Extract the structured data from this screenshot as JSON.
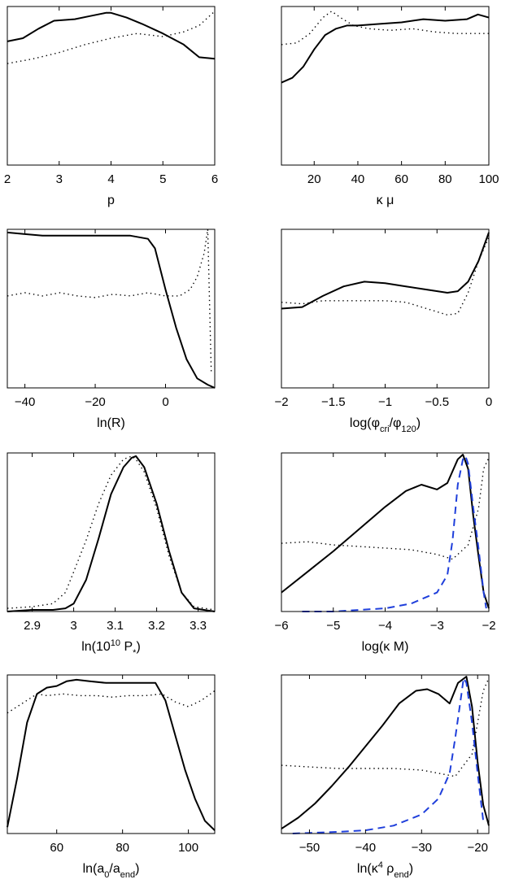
{
  "figure": {
    "description_free": true
  },
  "colors": {
    "solid": "#000000",
    "dotted": "#000000",
    "dashed": "#1f3fdb"
  },
  "chart_data": [
    {
      "type": "line",
      "xlabel": "p",
      "xlim": [
        2,
        6
      ],
      "ylim": [
        0,
        1
      ],
      "xticks": [
        2,
        3,
        4,
        5,
        6
      ],
      "xtick_labels": [
        "2",
        "3",
        "4",
        "5",
        "6"
      ],
      "series": [
        {
          "name": "solid",
          "style": "solid",
          "x": [
            2.0,
            2.3,
            2.6,
            2.9,
            3.3,
            3.6,
            3.9,
            4.0,
            4.3,
            4.6,
            5.0,
            5.4,
            5.7,
            6.0
          ],
          "y": [
            0.78,
            0.8,
            0.86,
            0.91,
            0.92,
            0.94,
            0.96,
            0.96,
            0.93,
            0.89,
            0.83,
            0.76,
            0.68,
            0.67
          ]
        },
        {
          "name": "dotted",
          "style": "dotted",
          "x": [
            2.0,
            2.5,
            3.0,
            3.5,
            4.0,
            4.5,
            5.0,
            5.4,
            5.7,
            6.0
          ],
          "y": [
            0.64,
            0.67,
            0.71,
            0.76,
            0.8,
            0.83,
            0.81,
            0.84,
            0.88,
            0.97
          ]
        }
      ]
    },
    {
      "type": "line",
      "xlabel": "κ μ",
      "xlim": [
        5,
        100
      ],
      "ylim": [
        0,
        1
      ],
      "xticks": [
        20,
        40,
        60,
        80,
        100
      ],
      "xtick_labels": [
        "20",
        "40",
        "60",
        "80",
        "100"
      ],
      "series": [
        {
          "name": "solid",
          "style": "solid",
          "x": [
            5,
            10,
            15,
            20,
            25,
            30,
            35,
            40,
            50,
            60,
            70,
            80,
            90,
            95,
            100
          ],
          "y": [
            0.52,
            0.55,
            0.62,
            0.73,
            0.82,
            0.86,
            0.88,
            0.88,
            0.89,
            0.9,
            0.92,
            0.91,
            0.92,
            0.95,
            0.93
          ]
        },
        {
          "name": "dotted",
          "style": "dotted",
          "x": [
            5,
            12,
            18,
            24,
            28,
            32,
            38,
            45,
            55,
            65,
            75,
            85,
            100
          ],
          "y": [
            0.76,
            0.77,
            0.83,
            0.93,
            0.97,
            0.93,
            0.88,
            0.86,
            0.85,
            0.86,
            0.84,
            0.83,
            0.83
          ]
        }
      ]
    },
    {
      "type": "line",
      "xlabel": "ln(R)",
      "xlim": [
        -45,
        14
      ],
      "ylim": [
        0,
        1
      ],
      "xticks": [
        -40,
        -20,
        0
      ],
      "xtick_labels": [
        "−40",
        "−20",
        "0"
      ],
      "series": [
        {
          "name": "solid",
          "style": "solid",
          "x": [
            -45,
            -40,
            -35,
            -30,
            -25,
            -20,
            -15,
            -10,
            -5,
            -3,
            0,
            3,
            6,
            9,
            12,
            14
          ],
          "y": [
            0.98,
            0.97,
            0.96,
            0.96,
            0.96,
            0.96,
            0.96,
            0.96,
            0.94,
            0.88,
            0.62,
            0.38,
            0.18,
            0.06,
            0.02,
            0.0
          ]
        },
        {
          "name": "dotted",
          "style": "dotted",
          "x": [
            -45,
            -40,
            -35,
            -30,
            -25,
            -20,
            -15,
            -10,
            -5,
            0,
            4,
            7,
            9,
            11,
            12,
            13
          ],
          "y": [
            0.58,
            0.6,
            0.58,
            0.6,
            0.58,
            0.57,
            0.59,
            0.58,
            0.6,
            0.58,
            0.58,
            0.62,
            0.7,
            0.85,
            1.0,
            0.1
          ]
        }
      ]
    },
    {
      "type": "line",
      "xlabel": "log(φcri/φ120)",
      "xlim": [
        -2,
        0
      ],
      "ylim": [
        0,
        1
      ],
      "xticks": [
        -2,
        -1.5,
        -1,
        -0.5,
        0
      ],
      "xtick_labels": [
        "−2",
        "−1.5",
        "−1",
        "−0.5",
        "0"
      ],
      "series": [
        {
          "name": "solid",
          "style": "solid",
          "x": [
            -2.0,
            -1.8,
            -1.6,
            -1.4,
            -1.2,
            -1.0,
            -0.8,
            -0.6,
            -0.4,
            -0.3,
            -0.2,
            -0.1,
            0.0
          ],
          "y": [
            0.5,
            0.51,
            0.58,
            0.64,
            0.67,
            0.66,
            0.64,
            0.62,
            0.6,
            0.61,
            0.67,
            0.8,
            0.98
          ]
        },
        {
          "name": "dotted",
          "style": "dotted",
          "x": [
            -2.0,
            -1.8,
            -1.6,
            -1.4,
            -1.2,
            -1.0,
            -0.8,
            -0.6,
            -0.4,
            -0.3,
            -0.2,
            -0.1,
            0.0
          ],
          "y": [
            0.54,
            0.53,
            0.55,
            0.55,
            0.55,
            0.55,
            0.54,
            0.5,
            0.46,
            0.47,
            0.6,
            0.8,
            0.95
          ]
        }
      ]
    },
    {
      "type": "line",
      "xlabel": "ln(10¹⁰ P*)",
      "xlim": [
        2.84,
        3.34
      ],
      "ylim": [
        0,
        1
      ],
      "xticks": [
        2.9,
        3.0,
        3.1,
        3.2,
        3.3
      ],
      "xtick_labels": [
        "2.9",
        "3",
        "3.1",
        "3.2",
        "3.3"
      ],
      "series": [
        {
          "name": "solid",
          "style": "solid",
          "x": [
            2.84,
            2.9,
            2.95,
            2.98,
            3.0,
            3.03,
            3.06,
            3.09,
            3.12,
            3.14,
            3.15,
            3.17,
            3.2,
            3.23,
            3.26,
            3.29,
            3.34
          ],
          "y": [
            0.0,
            0.01,
            0.01,
            0.02,
            0.05,
            0.2,
            0.46,
            0.74,
            0.91,
            0.97,
            0.98,
            0.91,
            0.68,
            0.38,
            0.12,
            0.02,
            0.0
          ]
        },
        {
          "name": "dotted",
          "style": "dotted",
          "x": [
            2.84,
            2.9,
            2.95,
            2.98,
            3.0,
            3.03,
            3.06,
            3.09,
            3.12,
            3.14,
            3.15,
            3.17,
            3.2,
            3.23,
            3.26,
            3.29,
            3.34
          ],
          "y": [
            0.02,
            0.03,
            0.05,
            0.12,
            0.25,
            0.45,
            0.68,
            0.86,
            0.96,
            0.98,
            0.96,
            0.88,
            0.65,
            0.35,
            0.12,
            0.03,
            0.01
          ]
        }
      ]
    },
    {
      "type": "line",
      "xlabel": "log(κ M)",
      "xlim": [
        -6,
        -2
      ],
      "ylim": [
        0,
        1
      ],
      "xticks": [
        -6,
        -5,
        -4,
        -3,
        -2
      ],
      "xtick_labels": [
        "−6",
        "−5",
        "−4",
        "−3",
        "−2"
      ],
      "series": [
        {
          "name": "solid",
          "style": "solid",
          "x": [
            -6.0,
            -5.5,
            -5.0,
            -4.5,
            -4.0,
            -3.6,
            -3.3,
            -3.0,
            -2.8,
            -2.6,
            -2.5,
            -2.4,
            -2.3,
            -2.2,
            -2.1,
            -2.0
          ],
          "y": [
            0.12,
            0.25,
            0.38,
            0.52,
            0.66,
            0.76,
            0.8,
            0.77,
            0.81,
            0.96,
            0.99,
            0.9,
            0.6,
            0.35,
            0.12,
            0.02
          ]
        },
        {
          "name": "dotted",
          "style": "dotted",
          "x": [
            -6.0,
            -5.5,
            -5.0,
            -4.5,
            -4.0,
            -3.5,
            -3.0,
            -2.7,
            -2.4,
            -2.2,
            -2.1,
            -2.0
          ],
          "y": [
            0.43,
            0.44,
            0.42,
            0.41,
            0.4,
            0.39,
            0.36,
            0.33,
            0.42,
            0.65,
            0.9,
            0.97
          ]
        },
        {
          "name": "dashed",
          "style": "dashed",
          "x": [
            -5.6,
            -5.0,
            -4.5,
            -4.0,
            -3.5,
            -3.0,
            -2.8,
            -2.7,
            -2.6,
            -2.5,
            -2.45,
            -2.4,
            -2.3,
            -2.2,
            -2.1,
            -2.05
          ],
          "y": [
            0.0,
            0.0,
            0.01,
            0.02,
            0.05,
            0.12,
            0.23,
            0.45,
            0.8,
            0.96,
            0.98,
            0.93,
            0.65,
            0.4,
            0.12,
            0.02
          ]
        }
      ]
    },
    {
      "type": "line",
      "xlabel": "ln(a0/aend)",
      "xlim": [
        45,
        108
      ],
      "ylim": [
        0,
        1
      ],
      "xticks": [
        60,
        80,
        100
      ],
      "xtick_labels": [
        "60",
        "80",
        "100"
      ],
      "series": [
        {
          "name": "solid",
          "style": "solid",
          "x": [
            45,
            48,
            51,
            54,
            57,
            60,
            63,
            66,
            70,
            75,
            80,
            85,
            90,
            93,
            96,
            99,
            102,
            105,
            108
          ],
          "y": [
            0.04,
            0.35,
            0.7,
            0.88,
            0.92,
            0.93,
            0.96,
            0.97,
            0.96,
            0.95,
            0.95,
            0.95,
            0.95,
            0.84,
            0.62,
            0.4,
            0.22,
            0.08,
            0.02
          ]
        },
        {
          "name": "dotted",
          "style": "dotted",
          "x": [
            45,
            48,
            51,
            54,
            57,
            62,
            67,
            72,
            77,
            82,
            87,
            92,
            96,
            100,
            104,
            108
          ],
          "y": [
            0.76,
            0.8,
            0.84,
            0.88,
            0.87,
            0.88,
            0.87,
            0.87,
            0.86,
            0.87,
            0.87,
            0.88,
            0.83,
            0.8,
            0.84,
            0.9
          ]
        }
      ]
    },
    {
      "type": "line",
      "xlabel": "ln(κ⁴ ρend)",
      "xlim": [
        -55,
        -18
      ],
      "ylim": [
        0,
        1
      ],
      "xticks": [
        -50,
        -40,
        -30,
        -20
      ],
      "xtick_labels": [
        "−50",
        "−40",
        "−30",
        "−20"
      ],
      "series": [
        {
          "name": "solid",
          "style": "solid",
          "x": [
            -55,
            -52,
            -49,
            -46,
            -43,
            -40,
            -37,
            -34,
            -31,
            -29,
            -27,
            -25,
            -23.5,
            -22,
            -21,
            -20,
            -19,
            -18
          ],
          "y": [
            0.03,
            0.1,
            0.19,
            0.3,
            0.42,
            0.55,
            0.68,
            0.82,
            0.9,
            0.91,
            0.88,
            0.82,
            0.95,
            0.99,
            0.8,
            0.45,
            0.18,
            0.05
          ]
        },
        {
          "name": "dotted",
          "style": "dotted",
          "x": [
            -55,
            -50,
            -45,
            -40,
            -35,
            -30,
            -27,
            -24,
            -21,
            -20,
            -19,
            -18
          ],
          "y": [
            0.43,
            0.42,
            0.41,
            0.41,
            0.41,
            0.4,
            0.38,
            0.36,
            0.5,
            0.7,
            0.9,
            0.98
          ]
        },
        {
          "name": "dashed",
          "style": "dashed",
          "x": [
            -53,
            -45,
            -40,
            -35,
            -30,
            -27,
            -25,
            -24,
            -23,
            -22.5,
            -22,
            -21,
            -20,
            -19
          ],
          "y": [
            0.0,
            0.01,
            0.02,
            0.05,
            0.12,
            0.22,
            0.38,
            0.6,
            0.85,
            0.98,
            0.95,
            0.7,
            0.38,
            0.08
          ]
        }
      ]
    }
  ]
}
